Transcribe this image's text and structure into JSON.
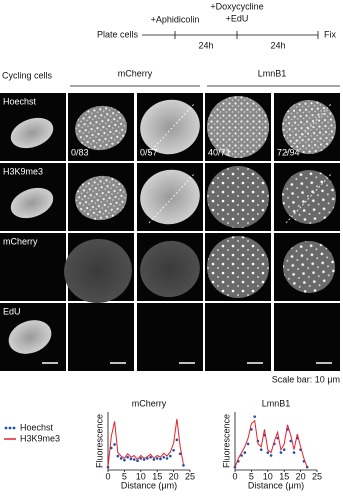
{
  "timeline": {
    "start": "Plate cells",
    "step1": "+Aphidicolin",
    "step2": "+Doxycycline",
    "step2b": "+EdU",
    "interval1": "24h",
    "interval2": "24h",
    "end": "Fix"
  },
  "headers": {
    "control": "Cycling cells",
    "group1": "mCherry",
    "group2": "LmnB1"
  },
  "panels": {
    "row_labels": [
      "Hoechst",
      "H3K9me3",
      "mCherry",
      "EdU"
    ],
    "counts": [
      "0/83",
      "0/57",
      "40/71",
      "72/94"
    ],
    "scale_bar": "Scale bar: 10 μm"
  },
  "chart_data": [
    {
      "type": "line",
      "title": "mCherry",
      "x_label": "Distance (μm)",
      "y_label": "Fluorescence",
      "x": [
        0,
        1,
        2,
        3,
        4,
        5,
        6,
        7,
        8,
        9,
        10,
        11,
        12,
        13,
        14,
        15,
        16,
        17,
        18,
        19,
        20,
        21,
        22,
        23
      ],
      "xlim": [
        0,
        25
      ],
      "xticks": [
        0,
        5,
        10,
        15,
        20,
        25
      ],
      "ylim": [
        0,
        100
      ],
      "series": [
        {
          "name": "Hoechst",
          "color": "#1f4fa8",
          "style": "markers",
          "values": [
            5,
            38,
            44,
            24,
            20,
            17,
            22,
            19,
            18,
            16,
            20,
            18,
            20,
            22,
            18,
            20,
            19,
            22,
            20,
            24,
            34,
            52,
            28,
            8
          ]
        },
        {
          "name": "H3K9me3",
          "color": "#e8202a",
          "style": "line",
          "values": [
            5,
            58,
            84,
            30,
            24,
            20,
            28,
            22,
            25,
            18,
            25,
            20,
            23,
            27,
            20,
            25,
            22,
            29,
            24,
            31,
            46,
            88,
            40,
            10
          ]
        }
      ]
    },
    {
      "type": "line",
      "title": "LmnB1",
      "x_label": "Distance (μm)",
      "y_label": "Fluorescence",
      "x": [
        0,
        1,
        2,
        3,
        4,
        5,
        6,
        7,
        8,
        9,
        10,
        11,
        12,
        13,
        14,
        15,
        16,
        17,
        18,
        19,
        20,
        21,
        22
      ],
      "xlim": [
        0,
        25
      ],
      "xticks": [
        0,
        5,
        10,
        15,
        20,
        25
      ],
      "ylim": [
        0,
        100
      ],
      "series": [
        {
          "color": "#1f4fa8",
          "style": "markers",
          "values": [
            5,
            15,
            25,
            30,
            45,
            70,
            92,
            50,
            35,
            60,
            30,
            25,
            45,
            55,
            30,
            35,
            70,
            50,
            30,
            55,
            35,
            15,
            5
          ]
        },
        {
          "color": "#e8202a",
          "style": "line",
          "values": [
            5,
            20,
            30,
            40,
            55,
            80,
            85,
            45,
            40,
            70,
            35,
            30,
            50,
            65,
            35,
            45,
            78,
            60,
            35,
            62,
            40,
            20,
            5
          ]
        }
      ]
    }
  ]
}
